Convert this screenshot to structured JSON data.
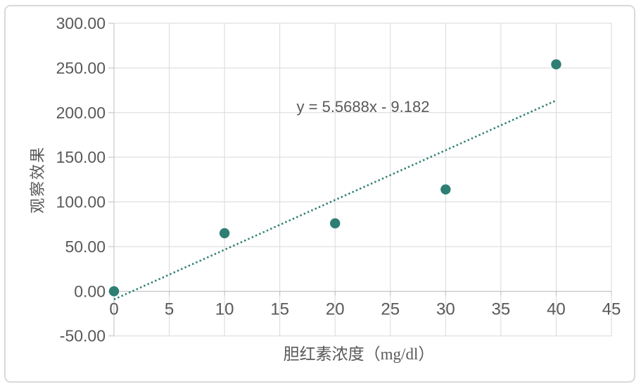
{
  "figure": {
    "background": "#FFFFFF",
    "frame_border_color": "#D9D9D9"
  },
  "chart_data": {
    "type": "scatter",
    "series": [
      {
        "points": [
          {
            "x": 0,
            "y": 0
          },
          {
            "x": 10,
            "y": 65
          },
          {
            "x": 20,
            "y": 76
          },
          {
            "x": 30,
            "y": 114
          },
          {
            "x": 40,
            "y": 254
          }
        ]
      }
    ],
    "trendline": {
      "kind": "linear",
      "slope": 5.5688,
      "intercept": -9.182,
      "equation_label": "y = 5.5688x - 9.182",
      "x_range": [
        0,
        40
      ],
      "style": "dotted"
    },
    "xlabel": "胆红素浓度（mg/dl）",
    "ylabel": "观察效果",
    "xlim": [
      0,
      45
    ],
    "ylim": [
      -50,
      300
    ],
    "x_ticks": [
      0,
      5,
      10,
      15,
      20,
      25,
      30,
      35,
      40,
      45
    ],
    "x_tick_labels": [
      "0",
      "5",
      "10",
      "15",
      "20",
      "25",
      "30",
      "35",
      "40",
      "45"
    ],
    "y_ticks": [
      -50,
      0,
      50,
      100,
      150,
      200,
      250,
      300
    ],
    "y_tick_labels": [
      "-50.00",
      "0.00",
      "50.00",
      "100.00",
      "150.00",
      "200.00",
      "250.00",
      "300.00"
    ],
    "grid": true,
    "legend": false,
    "colors": {
      "point": "#2E7E74",
      "trendline": "#2E7E74",
      "gridline": "#D9D9D9",
      "axis": "#BFBFBF",
      "tick_label": "#595959",
      "axis_title": "#595959",
      "equation": "#595959"
    }
  }
}
